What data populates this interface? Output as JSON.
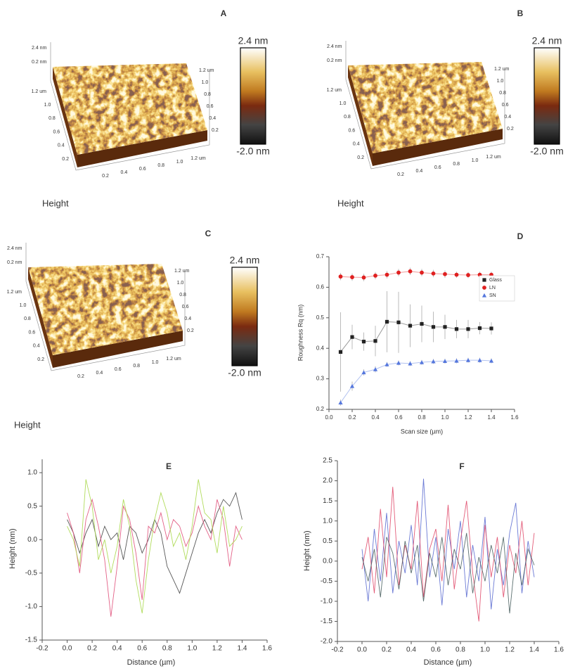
{
  "afm_images": [
    {
      "panel": "A",
      "z_labels": [
        "2.4 nm",
        "0.2 nm"
      ],
      "y_labels": [
        "1.2 um",
        "1.0",
        "0.8",
        "0.6",
        "0.4",
        "0.2"
      ],
      "x_labels": [
        "0.2",
        "0.4",
        "0.6",
        "0.8",
        "1.0",
        "1.2 um"
      ],
      "right_labels": [
        "1.2 um",
        "1.0",
        "0.8",
        "0.6",
        "0.4",
        "0.2"
      ],
      "colorbar_max": "2.4 nm",
      "colorbar_min": "-2.0 nm",
      "caption": "Height"
    },
    {
      "panel": "B",
      "z_labels": [
        "2.4 nm",
        "0.2 nm"
      ],
      "y_labels": [
        "1.2 um",
        "1.0",
        "0.8",
        "0.6",
        "0.4",
        "0.2"
      ],
      "x_labels": [
        "0.2",
        "0.4",
        "0.6",
        "0.8",
        "1.0",
        "1.2 um"
      ],
      "right_labels": [
        "1.2 um",
        "1.0",
        "0.8",
        "0.6",
        "0.4",
        "0.2"
      ],
      "colorbar_max": "2.4 nm",
      "colorbar_min": "-2.0 nm",
      "caption": "Height"
    },
    {
      "panel": "C",
      "z_labels": [
        "2.4 nm",
        "0.2 nm"
      ],
      "y_labels": [
        "1.2 um",
        "1.0",
        "0.8",
        "0.6",
        "0.4",
        "0.2"
      ],
      "x_labels": [
        "0.2",
        "0.4",
        "0.6",
        "0.8",
        "1.0",
        "1.2 um"
      ],
      "right_labels": [
        "1.2 um",
        "1.0",
        "0.8",
        "0.6",
        "0.4",
        "0.2"
      ],
      "colorbar_max": "2.4 nm",
      "colorbar_min": "-2.0 nm",
      "caption": "Height"
    }
  ],
  "chart_data": [
    {
      "type": "line",
      "title": "D",
      "x_label": "Scan size (µm)",
      "y_label": "Roughness Rq (nm)",
      "x": [
        0.1,
        0.2,
        0.3,
        0.4,
        0.5,
        0.6,
        0.7,
        0.8,
        0.9,
        1.0,
        1.1,
        1.2,
        1.3,
        1.4
      ],
      "series": [
        {
          "name": "Glass",
          "color": "#222222",
          "marker": "square",
          "values": [
            0.388,
            0.437,
            0.422,
            0.424,
            0.487,
            0.485,
            0.474,
            0.48,
            0.47,
            0.47,
            0.463,
            0.463,
            0.466,
            0.465
          ],
          "errors": [
            0.13,
            0.04,
            0.03,
            0.05,
            0.1,
            0.1,
            0.07,
            0.06,
            0.05,
            0.04,
            0.03,
            0.03,
            0.02,
            0.02
          ]
        },
        {
          "name": "LN",
          "color": "#e02020",
          "marker": "circle",
          "values": [
            0.635,
            0.633,
            0.632,
            0.638,
            0.641,
            0.648,
            0.652,
            0.648,
            0.645,
            0.643,
            0.641,
            0.64,
            0.641,
            0.641
          ],
          "errors": [
            0.012,
            0.012,
            0.012,
            0.012,
            0.012,
            0.012,
            0.012,
            0.012,
            0.012,
            0.012,
            0.01,
            0.01,
            0.01,
            0.01
          ]
        },
        {
          "name": "SN",
          "color": "#5577dd",
          "marker": "triangle",
          "values": [
            0.222,
            0.276,
            0.321,
            0.331,
            0.347,
            0.352,
            0.35,
            0.354,
            0.357,
            0.358,
            0.359,
            0.361,
            0.361,
            0.359
          ],
          "errors": [
            0.01,
            0.015,
            0.01,
            0.01,
            0.008,
            0.008,
            0.008,
            0.008,
            0.008,
            0.008,
            0.008,
            0.008,
            0.008,
            0.008
          ]
        }
      ],
      "xlim": [
        0,
        1.6
      ],
      "xticks": [
        {
          "value": 0,
          "label": "0.0"
        },
        0.2,
        0.4,
        0.6,
        0.8,
        {
          "value": 1,
          "label": "1.0"
        },
        1.2,
        1.4,
        1.6
      ],
      "ylim": [
        0.2,
        0.7
      ],
      "yticks": [
        0.2,
        0.3,
        0.4,
        0.5,
        0.6,
        0.7
      ],
      "legend": "upper right"
    },
    {
      "type": "line",
      "title": "E",
      "x_label": "Distance (µm)",
      "y_label": "Height (nm)",
      "x": [
        0,
        0.05,
        0.1,
        0.15,
        0.2,
        0.25,
        0.3,
        0.35,
        0.4,
        0.45,
        0.5,
        0.55,
        0.6,
        0.65,
        0.7,
        0.75,
        0.8,
        0.85,
        0.9,
        0.95,
        1.0,
        1.05,
        1.1,
        1.15,
        1.2,
        1.25,
        1.3,
        1.35,
        1.4
      ],
      "series": [
        {
          "color": "#444444",
          "values": [
            0.3,
            0.1,
            -0.2,
            0.1,
            0.3,
            -0.1,
            0.2,
            0.0,
            0.1,
            -0.3,
            0.2,
            0.1,
            -0.2,
            0.0,
            0.3,
            0.1,
            -0.4,
            -0.6,
            -0.8,
            -0.5,
            -0.2,
            0.1,
            0.3,
            0.1,
            0.4,
            0.6,
            0.5,
            0.7,
            0.3
          ]
        },
        {
          "color": "#e0507a",
          "values": [
            0.4,
            0.1,
            -0.5,
            0.3,
            0.6,
            0.2,
            -0.3,
            -1.15,
            -0.4,
            0.5,
            0.3,
            -0.2,
            -0.9,
            0.2,
            0.1,
            0.4,
            0.0,
            0.3,
            0.2,
            -0.1,
            0.1,
            0.5,
            0.2,
            0.0,
            0.6,
            0.3,
            -0.4,
            0.2,
            0.0
          ]
        },
        {
          "color": "#a8d84a",
          "values": [
            0.2,
            0.0,
            -0.4,
            0.9,
            0.5,
            -0.3,
            0.0,
            -0.5,
            -0.1,
            0.6,
            0.2,
            -0.6,
            -1.1,
            -0.3,
            0.3,
            0.7,
            0.4,
            -0.1,
            0.1,
            -0.3,
            0.2,
            0.9,
            0.4,
            0.3,
            -0.2,
            0.5,
            -0.1,
            0.0,
            0.2
          ]
        }
      ],
      "xlim": [
        -0.2,
        1.6
      ],
      "xticks": [
        -0.2,
        {
          "value": 0,
          "label": "0.0"
        },
        0.2,
        0.4,
        0.6,
        0.8,
        {
          "value": 1,
          "label": "1.0"
        },
        1.2,
        1.4,
        1.6
      ],
      "ylim": [
        -1.5,
        1.2
      ],
      "yticks": [
        -1.5,
        {
          "value": -1,
          "label": "-1.0"
        },
        -0.5,
        {
          "value": 0,
          "label": "0.0"
        },
        0.5,
        {
          "value": 1,
          "label": "1.0"
        }
      ]
    },
    {
      "type": "line",
      "title": "F",
      "x_label": "Distance (µm)",
      "y_label": "Height (nm)",
      "x": [
        0,
        0.05,
        0.1,
        0.15,
        0.2,
        0.25,
        0.3,
        0.35,
        0.4,
        0.45,
        0.5,
        0.55,
        0.6,
        0.65,
        0.7,
        0.75,
        0.8,
        0.85,
        0.9,
        0.95,
        1.0,
        1.05,
        1.1,
        1.15,
        1.2,
        1.25,
        1.3,
        1.35,
        1.4
      ],
      "series": [
        {
          "color": "#5b6bd0",
          "values": [
            0.3,
            -1.0,
            0.8,
            -0.5,
            1.2,
            -0.8,
            0.5,
            -0.3,
            0.9,
            -0.6,
            2.05,
            -0.4,
            0.6,
            -1.1,
            0.8,
            -0.2,
            1.0,
            -0.9,
            0.4,
            -0.5,
            1.1,
            -1.2,
            0.3,
            -0.6,
            0.7,
            1.45,
            -0.8,
            0.5,
            -0.4
          ]
        },
        {
          "color": "#e04a6a",
          "values": [
            -0.2,
            0.6,
            -0.8,
            1.3,
            -0.4,
            1.85,
            -0.6,
            0.4,
            -0.2,
            1.5,
            -0.9,
            0.3,
            0.8,
            -0.5,
            1.4,
            -0.7,
            0.5,
            1.5,
            -0.3,
            -1.5,
            0.9,
            -0.4,
            0.6,
            -0.9,
            0.4,
            -0.3,
            1.0,
            -0.6,
            0.7
          ]
        },
        {
          "color": "#4a6060",
          "values": [
            0.1,
            -0.5,
            0.3,
            -0.9,
            0.6,
            0.2,
            -0.7,
            0.5,
            -0.3,
            0.4,
            -1.0,
            0.2,
            -0.4,
            0.6,
            -0.6,
            0.3,
            -0.2,
            0.7,
            -0.8,
            0.1,
            -0.5,
            0.4,
            -0.3,
            0.6,
            -1.3,
            0.2,
            -0.6,
            0.3,
            -0.1
          ]
        }
      ],
      "xlim": [
        -0.2,
        1.6
      ],
      "xticks": [
        -0.2,
        {
          "value": 0,
          "label": "0.0"
        },
        0.2,
        0.4,
        0.6,
        0.8,
        {
          "value": 1,
          "label": "1.0"
        },
        1.2,
        1.4,
        1.6
      ],
      "ylim": [
        -2,
        2.5
      ],
      "yticks": [
        {
          "value": -2,
          "label": "-2.0"
        },
        -1.5,
        {
          "value": -1,
          "label": "-1.0"
        },
        -0.5,
        {
          "value": 0,
          "label": "0.0"
        },
        0.5,
        {
          "value": 1,
          "label": "1.0"
        },
        1.5,
        {
          "value": 2,
          "label": "2.0"
        },
        2.5
      ]
    }
  ]
}
